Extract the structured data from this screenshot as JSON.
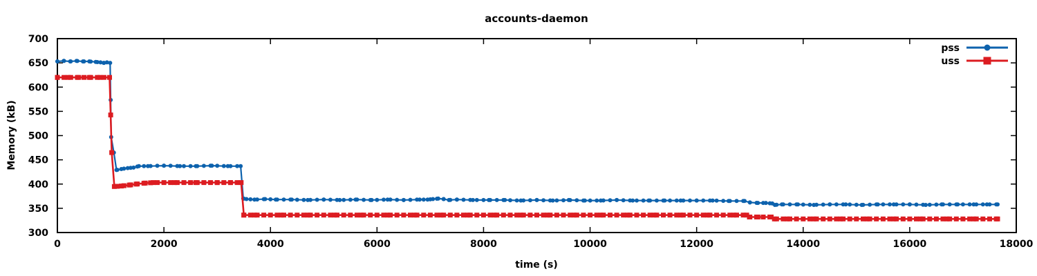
{
  "chart_data": {
    "type": "line",
    "title": "accounts-daemon",
    "xlabel": "time (s)",
    "ylabel": "Memory (kB)",
    "xlim": [
      0,
      18000
    ],
    "ylim": [
      300,
      700
    ],
    "x_ticks": [
      0,
      2000,
      4000,
      6000,
      8000,
      10000,
      12000,
      14000,
      16000,
      18000
    ],
    "y_ticks": [
      300,
      350,
      400,
      450,
      500,
      550,
      600,
      650,
      700
    ],
    "grid": false,
    "legend_position": "top-right-inside",
    "background_color": "#ffffff",
    "axis_color": "#000000",
    "marker_interval_s": 125,
    "series": [
      {
        "name": "pss",
        "color": "#0d62ad",
        "marker": "circle",
        "points": [
          [
            0,
            653
          ],
          [
            120,
            654
          ],
          [
            240,
            653
          ],
          [
            360,
            654
          ],
          [
            480,
            653
          ],
          [
            600,
            653
          ],
          [
            720,
            652
          ],
          [
            810,
            651
          ],
          [
            870,
            650
          ],
          [
            930,
            651
          ],
          [
            990,
            650
          ],
          [
            1010,
            497
          ],
          [
            1060,
            465
          ],
          [
            1110,
            429
          ],
          [
            1200,
            431
          ],
          [
            1320,
            433
          ],
          [
            1430,
            434
          ],
          [
            1530,
            437
          ],
          [
            1700,
            437
          ],
          [
            2000,
            438
          ],
          [
            2300,
            437
          ],
          [
            2600,
            437
          ],
          [
            2900,
            438
          ],
          [
            3200,
            437
          ],
          [
            3440,
            437
          ],
          [
            3490,
            370
          ],
          [
            3550,
            369
          ],
          [
            3700,
            368
          ],
          [
            3900,
            369
          ],
          [
            4100,
            368
          ],
          [
            4400,
            368
          ],
          [
            4700,
            367
          ],
          [
            5000,
            368
          ],
          [
            5300,
            367
          ],
          [
            5600,
            368
          ],
          [
            5900,
            367
          ],
          [
            6200,
            368
          ],
          [
            6500,
            367
          ],
          [
            6800,
            368
          ],
          [
            6950,
            368
          ],
          [
            7050,
            369
          ],
          [
            7150,
            370
          ],
          [
            7250,
            369
          ],
          [
            7350,
            367
          ],
          [
            7500,
            368
          ],
          [
            7800,
            367
          ],
          [
            8100,
            367
          ],
          [
            8400,
            367
          ],
          [
            8700,
            366
          ],
          [
            9000,
            367
          ],
          [
            9300,
            366
          ],
          [
            9600,
            367
          ],
          [
            9900,
            366
          ],
          [
            10200,
            366
          ],
          [
            10500,
            367
          ],
          [
            10800,
            366
          ],
          [
            11100,
            366
          ],
          [
            11400,
            366
          ],
          [
            11700,
            366
          ],
          [
            12000,
            366
          ],
          [
            12300,
            366
          ],
          [
            12600,
            365
          ],
          [
            12900,
            365
          ],
          [
            13000,
            362
          ],
          [
            13150,
            361
          ],
          [
            13300,
            361
          ],
          [
            13420,
            360
          ],
          [
            13470,
            357
          ],
          [
            13600,
            358
          ],
          [
            13900,
            358
          ],
          [
            14200,
            357
          ],
          [
            14500,
            358
          ],
          [
            14800,
            358
          ],
          [
            15100,
            357
          ],
          [
            15400,
            358
          ],
          [
            15700,
            358
          ],
          [
            16000,
            358
          ],
          [
            16300,
            357
          ],
          [
            16600,
            358
          ],
          [
            16900,
            358
          ],
          [
            17200,
            358
          ],
          [
            17450,
            358
          ],
          [
            17650,
            358
          ]
        ]
      },
      {
        "name": "uss",
        "color": "#dc1c21",
        "marker": "square",
        "points": [
          [
            0,
            620
          ],
          [
            200,
            620
          ],
          [
            400,
            620
          ],
          [
            600,
            620
          ],
          [
            800,
            620
          ],
          [
            980,
            620
          ],
          [
            1020,
            465
          ],
          [
            1070,
            395
          ],
          [
            1200,
            396
          ],
          [
            1350,
            398
          ],
          [
            1480,
            400
          ],
          [
            1650,
            402
          ],
          [
            1800,
            403
          ],
          [
            2200,
            403
          ],
          [
            2600,
            403
          ],
          [
            3000,
            403
          ],
          [
            3250,
            403
          ],
          [
            3450,
            403
          ],
          [
            3500,
            336
          ],
          [
            3700,
            336
          ],
          [
            4200,
            336
          ],
          [
            4700,
            336
          ],
          [
            5200,
            336
          ],
          [
            5700,
            336
          ],
          [
            6200,
            336
          ],
          [
            6700,
            336
          ],
          [
            7200,
            336
          ],
          [
            7700,
            336
          ],
          [
            8200,
            336
          ],
          [
            8700,
            336
          ],
          [
            9200,
            336
          ],
          [
            9700,
            336
          ],
          [
            10200,
            336
          ],
          [
            10700,
            336
          ],
          [
            11200,
            336
          ],
          [
            11700,
            336
          ],
          [
            12200,
            336
          ],
          [
            12700,
            336
          ],
          [
            12940,
            336
          ],
          [
            12990,
            332
          ],
          [
            13150,
            332
          ],
          [
            13400,
            332
          ],
          [
            13460,
            328
          ],
          [
            13700,
            328
          ],
          [
            14200,
            328
          ],
          [
            14700,
            328
          ],
          [
            15200,
            328
          ],
          [
            15700,
            328
          ],
          [
            16200,
            328
          ],
          [
            16700,
            328
          ],
          [
            17200,
            328
          ],
          [
            17650,
            328
          ]
        ]
      }
    ]
  }
}
